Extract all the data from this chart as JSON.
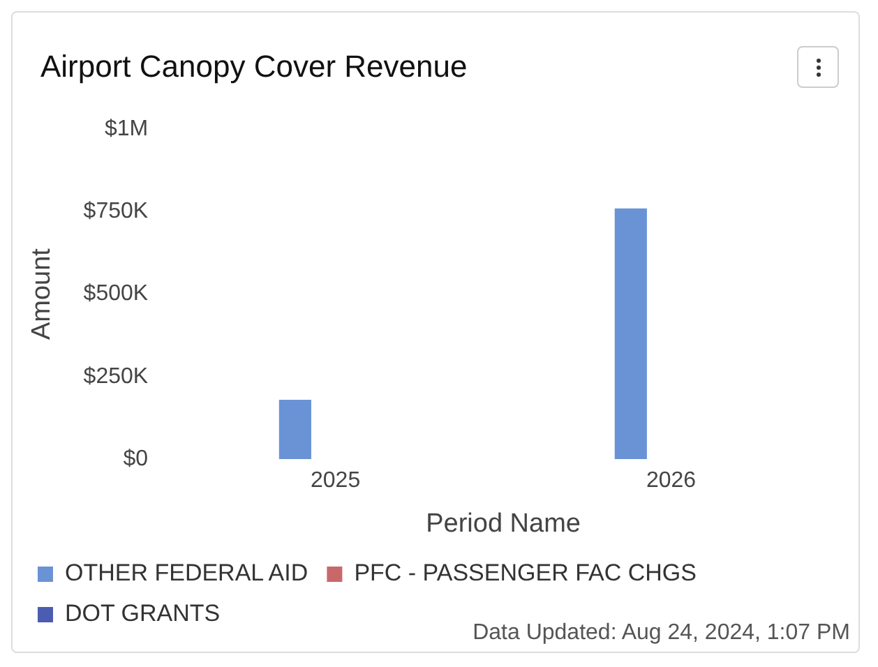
{
  "chart_data": {
    "type": "bar",
    "title": "Airport Canopy Cover Revenue",
    "xlabel": "Period Name",
    "ylabel": "Amount",
    "categories": [
      "2025",
      "2026"
    ],
    "series": [
      {
        "name": "OTHER FEDERAL AID",
        "color": "#6a93d6",
        "values": [
          180000,
          760000
        ]
      },
      {
        "name": "PFC - PASSENGER FAC CHGS",
        "color": "#c9686a",
        "values": [
          null,
          null
        ]
      },
      {
        "name": "DOT GRANTS",
        "color": "#4a5db0",
        "values": [
          null,
          null
        ]
      }
    ],
    "ylim": [
      0,
      1000000
    ],
    "yticks": [
      {
        "value": 0,
        "label": "$0"
      },
      {
        "value": 250000,
        "label": "$250K"
      },
      {
        "value": 500000,
        "label": "$500K"
      },
      {
        "value": 750000,
        "label": "$750K"
      },
      {
        "value": 1000000,
        "label": "$1M"
      }
    ],
    "grid": false,
    "legend": "bottom",
    "annotations": [
      "Data Updated: Aug 24, 2024, 1:07 PM"
    ]
  }
}
